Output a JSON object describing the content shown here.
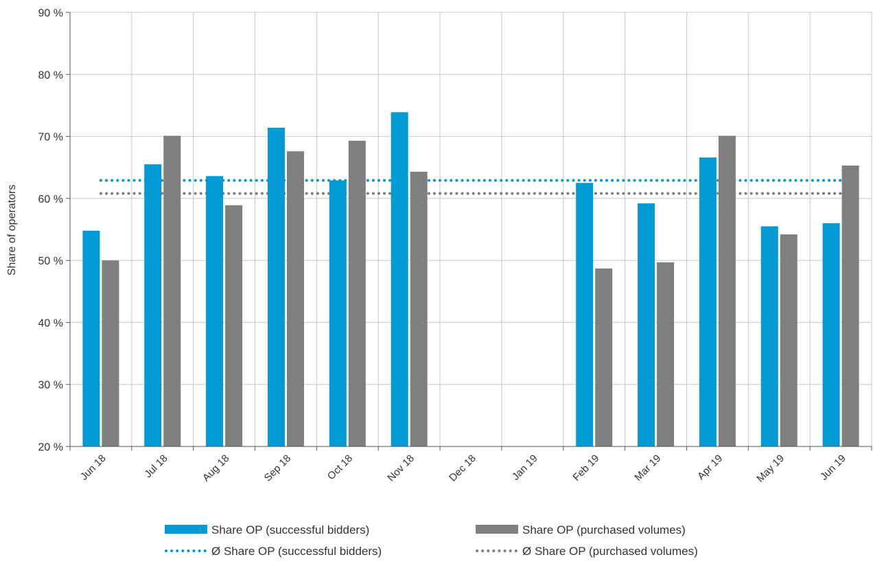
{
  "chart_data": {
    "type": "bar",
    "title": "",
    "xlabel": "",
    "ylabel": "Share of operators",
    "ylim": [
      20,
      90
    ],
    "yticks": [
      20,
      30,
      40,
      50,
      60,
      70,
      80,
      90
    ],
    "ytick_suffix": " %",
    "grid": true,
    "legend_position": "bottom",
    "categories": [
      "Jun 18",
      "Jul 18",
      "Aug 18",
      "Sep 18",
      "Oct 18",
      "Nov 18",
      "Dec 18",
      "Jan 19",
      "Feb 19",
      "Mar 19",
      "Apr 19",
      "May 19",
      "Jun 19"
    ],
    "series": [
      {
        "name": "Share OP (successful bidders)",
        "kind": "bar",
        "color": "#009ad4",
        "values": [
          54.8,
          65.5,
          63.6,
          71.4,
          62.9,
          73.9,
          null,
          null,
          62.5,
          59.2,
          66.6,
          55.5,
          56.0
        ]
      },
      {
        "name": "Share OP (purchased volumes)",
        "kind": "bar",
        "color": "#7f7f7f",
        "values": [
          50.0,
          70.1,
          58.9,
          67.6,
          69.3,
          64.3,
          null,
          null,
          48.7,
          49.7,
          70.1,
          54.2,
          65.3
        ]
      },
      {
        "name": "Ø Share OP (successful bidders)",
        "kind": "average-line",
        "color": "#009ad4",
        "value": 62.9
      },
      {
        "name": "Ø Share OP (purchased volumes)",
        "kind": "average-line",
        "color": "#7f7f7f",
        "value": 60.8
      }
    ]
  }
}
